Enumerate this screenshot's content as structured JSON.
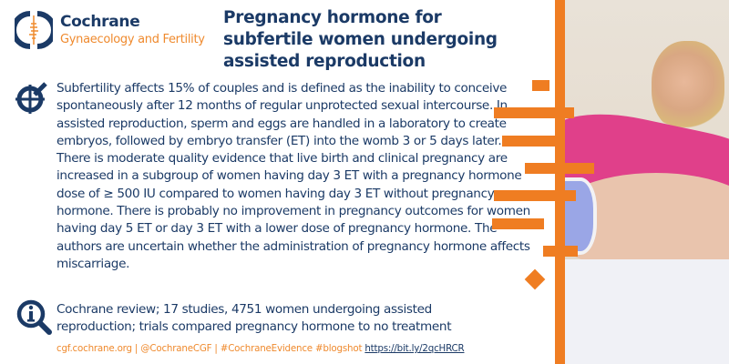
{
  "brand": {
    "name": "Cochrane",
    "group": "Gynaecology and Fertility"
  },
  "title": "Pregnancy hormone for subfertile women undergoing assisted reproduction",
  "body": {
    "p1": "Subfertility affects 15% of couples and is defined as the inability to conceive spontaneously after 12 months of regular unprotected sexual intercourse. In assisted reproduction, sperm and eggs are handled in a laboratory to create embryos, followed by embryo transfer (ET) into the womb 3 or 5 days later.",
    "p2": "There is moderate quality evidence that live birth and clinical pregnancy are increased in a subgroup of women having day 3 ET with a pregnancy hormone dose of ≥ 500 IU compared to women having day 3 ET without pregnancy hormone. There is probably no improvement in pregnancy outcomes for women having day 5 ET or day 3 ET with a lower dose of pregnancy hormone.  The authors are uncertain whether  the administration of pregnancy hormone affects miscarriage."
  },
  "review": "Cochrane review; 17 studies, 4751 women undergoing assisted reproduction; trials compared pregnancy hormone to no treatment",
  "footer": {
    "text": "cgf.cochrane.org | @CochraneCGF | #CochraneEvidence #blogshot ",
    "link": "https://bit.ly/2qcHRCR"
  },
  "colors": {
    "navy": "#1b3a66",
    "orange": "#ef7d22"
  }
}
